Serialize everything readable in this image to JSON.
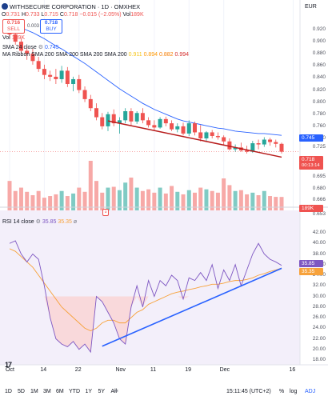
{
  "header": {
    "title": "WITHSECURE CORPORATION · 1D · OMXHEX",
    "ohlc": {
      "o_label": "O",
      "o": "0.731",
      "h_label": "H",
      "h": "0.733",
      "l_label": "L",
      "l": "0.715",
      "c_label": "C",
      "c": "0.718",
      "change": "−0.015 (−2.05%)",
      "vol_label": "Vol",
      "vol": "189K"
    },
    "currency": "EUR",
    "sell": {
      "value": "0.716",
      "label": "SELL"
    },
    "spread": "0.003",
    "buy": {
      "value": "0.718",
      "label": "BUY"
    },
    "vol_line": {
      "label": "Vol",
      "value": "189K"
    },
    "sma_line": {
      "label": "SMA 24 close",
      "value": "0.745"
    },
    "ribbon_line": {
      "label": "MA Ribbon SMA 200 SMA 200 SMA 200 SMA 200",
      "v1": "0.911",
      "v2": "0.894",
      "v3": "0.882",
      "v4": "0.994"
    },
    "rsi_line": {
      "label": "RSI 14 close",
      "v1": "35.85",
      "v2": "35.35"
    }
  },
  "price_axis": {
    "labels": [
      "0.920",
      "0.900",
      "0.880",
      "0.860",
      "0.840",
      "0.820",
      "0.800",
      "0.780",
      "0.760",
      "0.740",
      "0.725",
      "0.695",
      "0.680",
      "0.666",
      "0.653"
    ],
    "tags": {
      "sma": "0.745",
      "last": "0.718",
      "countdown": "00:13:14",
      "volume": "189K"
    }
  },
  "rsi_axis": {
    "labels": [
      "42.00",
      "40.00",
      "38.00",
      "36.00",
      "34.00",
      "32.00",
      "30.00",
      "28.00",
      "26.00",
      "24.00",
      "22.00",
      "20.00",
      "18.00"
    ],
    "tags": {
      "rsi": "35.85",
      "ma": "35.35"
    }
  },
  "time_axis": {
    "labels": [
      "Oct",
      "14",
      "22",
      "Nov",
      "11",
      "19",
      "Dec",
      "16"
    ]
  },
  "footer": {
    "ranges": [
      "1D",
      "5D",
      "1M",
      "3M",
      "6M",
      "YTD",
      "1Y",
      "5Y",
      "All"
    ],
    "time": "15:11:45 (UTC+2)",
    "pct": "%",
    "log": "log",
    "adj": "ADJ"
  },
  "logo": "17",
  "chart_data": {
    "type": "candlestick",
    "dates": [
      "Oct 4",
      "Oct 7",
      "Oct 8",
      "Oct 9",
      "Oct 10",
      "Oct 11",
      "Oct 14",
      "Oct 15",
      "Oct 16",
      "Oct 17",
      "Oct 18",
      "Oct 21",
      "Oct 22",
      "Oct 23",
      "Oct 24",
      "Oct 25",
      "Oct 28",
      "Oct 29",
      "Oct 30",
      "Oct 31",
      "Nov 1",
      "Nov 4",
      "Nov 5",
      "Nov 6",
      "Nov 7",
      "Nov 8",
      "Nov 11",
      "Nov 12",
      "Nov 13",
      "Nov 14",
      "Nov 15",
      "Nov 18",
      "Nov 19",
      "Nov 20",
      "Nov 21",
      "Nov 22",
      "Nov 25",
      "Nov 26",
      "Nov 27",
      "Nov 28",
      "Nov 29",
      "Dec 2",
      "Dec 3",
      "Dec 4",
      "Dec 5",
      "Dec 6",
      "Dec 9",
      "Dec 10"
    ],
    "ohlc": [
      [
        0.925,
        0.93,
        0.905,
        0.912
      ],
      [
        0.912,
        0.918,
        0.895,
        0.9
      ],
      [
        0.9,
        0.905,
        0.88,
        0.885
      ],
      [
        0.885,
        0.892,
        0.87,
        0.88
      ],
      [
        0.88,
        0.888,
        0.862,
        0.868
      ],
      [
        0.868,
        0.875,
        0.85,
        0.855
      ],
      [
        0.855,
        0.862,
        0.838,
        0.845
      ],
      [
        0.845,
        0.852,
        0.835,
        0.842
      ],
      [
        0.842,
        0.855,
        0.83,
        0.838
      ],
      [
        0.838,
        0.86,
        0.832,
        0.852
      ],
      [
        0.852,
        0.858,
        0.825,
        0.83
      ],
      [
        0.83,
        0.842,
        0.818,
        0.838
      ],
      [
        0.838,
        0.845,
        0.815,
        0.82
      ],
      [
        0.82,
        0.826,
        0.8,
        0.805
      ],
      [
        0.805,
        0.812,
        0.785,
        0.79
      ],
      [
        0.79,
        0.798,
        0.77,
        0.775
      ],
      [
        0.775,
        0.782,
        0.755,
        0.76
      ],
      [
        0.76,
        0.784,
        0.752,
        0.78
      ],
      [
        0.78,
        0.788,
        0.76,
        0.765
      ],
      [
        0.765,
        0.775,
        0.748,
        0.77
      ],
      [
        0.77,
        0.79,
        0.765,
        0.785
      ],
      [
        0.785,
        0.79,
        0.762,
        0.768
      ],
      [
        0.768,
        0.785,
        0.764,
        0.782
      ],
      [
        0.782,
        0.79,
        0.765,
        0.77
      ],
      [
        0.77,
        0.775,
        0.758,
        0.762
      ],
      [
        0.762,
        0.77,
        0.752,
        0.758
      ],
      [
        0.758,
        0.775,
        0.756,
        0.772
      ],
      [
        0.772,
        0.776,
        0.76,
        0.765
      ],
      [
        0.765,
        0.77,
        0.752,
        0.755
      ],
      [
        0.755,
        0.765,
        0.75,
        0.76
      ],
      [
        0.76,
        0.766,
        0.745,
        0.748
      ],
      [
        0.748,
        0.77,
        0.744,
        0.765
      ],
      [
        0.765,
        0.768,
        0.745,
        0.75
      ],
      [
        0.75,
        0.762,
        0.735,
        0.74
      ],
      [
        0.74,
        0.752,
        0.736,
        0.75
      ],
      [
        0.75,
        0.754,
        0.74,
        0.744
      ],
      [
        0.744,
        0.75,
        0.738,
        0.742
      ],
      [
        0.742,
        0.745,
        0.73,
        0.735
      ],
      [
        0.735,
        0.74,
        0.72,
        0.722
      ],
      [
        0.722,
        0.73,
        0.718,
        0.725
      ],
      [
        0.725,
        0.733,
        0.718,
        0.72
      ],
      [
        0.72,
        0.728,
        0.715,
        0.718
      ],
      [
        0.718,
        0.736,
        0.716,
        0.732
      ],
      [
        0.732,
        0.738,
        0.722,
        0.73
      ],
      [
        0.73,
        0.742,
        0.726,
        0.738
      ],
      [
        0.738,
        0.741,
        0.728,
        0.734
      ],
      [
        0.734,
        0.738,
        0.725,
        0.731
      ],
      [
        0.731,
        0.733,
        0.715,
        0.718
      ]
    ],
    "volume": [
      380,
      260,
      300,
      250,
      210,
      260,
      180,
      200,
      220,
      260,
      200,
      230,
      300,
      250,
      620,
      380,
      240,
      300,
      310,
      270,
      360,
      420,
      300,
      260,
      280,
      240,
      300,
      230,
      320,
      250,
      220,
      270,
      240,
      300,
      280,
      260,
      240,
      410,
      330,
      260,
      270,
      220,
      240,
      210,
      260,
      200,
      190,
      189
    ],
    "sma24": [
      0.93,
      0.927,
      0.923,
      0.919,
      0.915,
      0.91,
      0.905,
      0.899,
      0.893,
      0.888,
      0.882,
      0.876,
      0.87,
      0.864,
      0.857,
      0.85,
      0.843,
      0.836,
      0.829,
      0.822,
      0.816,
      0.81,
      0.804,
      0.798,
      0.793,
      0.788,
      0.784,
      0.78,
      0.776,
      0.772,
      0.769,
      0.767,
      0.765,
      0.763,
      0.761,
      0.759,
      0.757,
      0.756,
      0.754,
      0.752,
      0.751,
      0.75,
      0.749,
      0.748,
      0.748,
      0.747,
      0.746,
      0.745
    ],
    "rsi": [
      40,
      40.5,
      38,
      36.5,
      38,
      37,
      32,
      26,
      22,
      21,
      20.5,
      21.5,
      20,
      21,
      19.5,
      30,
      29,
      27,
      25,
      22,
      21,
      28,
      32,
      28,
      33,
      30,
      33,
      32,
      34,
      33,
      29.5,
      33.5,
      33,
      34.5,
      33,
      36,
      31.5,
      35,
      33,
      36,
      32,
      35,
      38,
      40,
      38,
      37,
      36.5,
      35.85
    ],
    "rsi_ma": [
      39,
      38.5,
      37.5,
      36.5,
      35.5,
      34,
      32.5,
      31,
      29.5,
      28,
      27,
      26,
      25,
      24,
      23.5,
      24,
      25,
      25.5,
      25.5,
      25,
      25,
      26,
      27,
      27.5,
      28.5,
      29,
      29.5,
      30,
      30.5,
      30.8,
      31,
      31.3,
      31.5,
      31.8,
      32,
      32.3,
      32.3,
      32.5,
      32.8,
      33,
      33,
      33.2,
      33.5,
      34,
      34.3,
      34.7,
      35,
      35.35
    ],
    "overbought": 30,
    "support_trendline": {
      "from": [
        "Oct 29",
        0.769
      ],
      "to": [
        "Dec 10",
        0.709
      ]
    },
    "rsi_trendline": {
      "from": [
        "Oct 28",
        20.6
      ],
      "to": [
        "Dec 10",
        35.3
      ]
    },
    "price_ylim": [
      0.65,
      0.94
    ],
    "rsi_ylim": [
      17.5,
      44
    ]
  },
  "colors": {
    "up": "#26a69a",
    "down": "#ef5350",
    "sma": "#2962ff",
    "trend": "#b71c1c",
    "rsi": "#7e57c2",
    "rsi_ma": "#f7a23b",
    "rsi_trend": "#2962ff",
    "vol_up": "#80cbc4",
    "vol_down": "#f7a9a7"
  }
}
